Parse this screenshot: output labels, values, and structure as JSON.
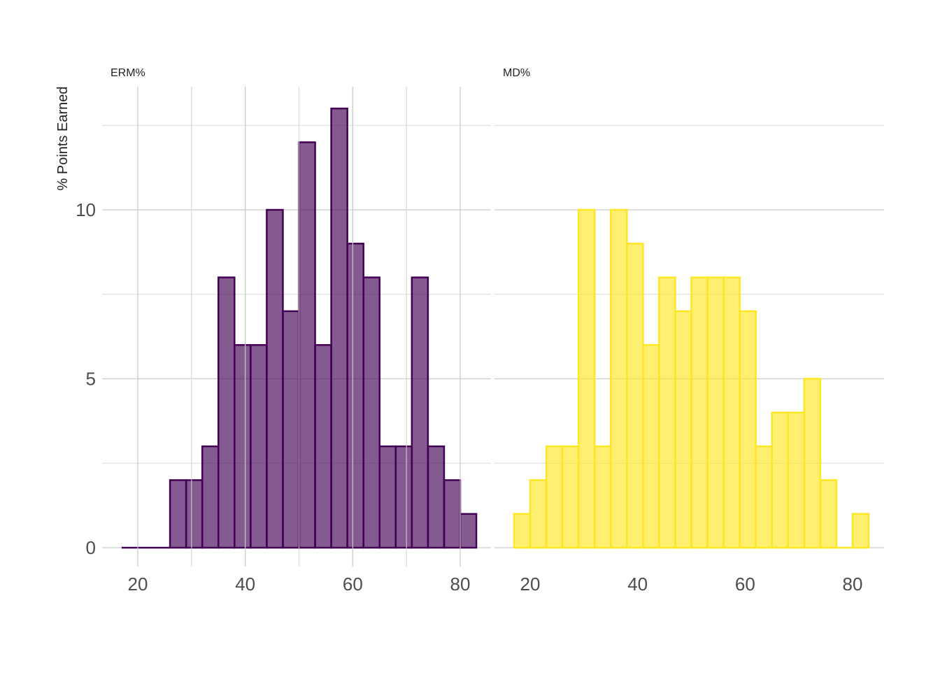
{
  "chart_data": {
    "type": "bar",
    "subtype": "faceted-histogram",
    "ylabel": "% Points Earned",
    "xlabel": "",
    "grid": true,
    "legend": "none",
    "bin_width": 3.0,
    "xlim": [
      15,
      84
    ],
    "ylim": [
      0,
      13.5
    ],
    "x_ticks": [
      20,
      40,
      60,
      80
    ],
    "y_ticks": [
      0,
      5,
      10
    ],
    "facets": [
      {
        "name": "ERM%",
        "fill": "#440154",
        "stroke": "#440154",
        "fill_opacity": 0.65,
        "bin_centers": [
          18.5,
          21.5,
          24.5,
          27.5,
          30.5,
          33.5,
          36.5,
          39.5,
          42.5,
          45.5,
          48.5,
          51.5,
          54.5,
          57.5,
          60.5,
          63.5,
          66.5,
          69.5,
          72.5,
          75.5,
          78.5,
          81.5
        ],
        "counts": [
          0,
          0,
          0,
          2,
          2,
          3,
          8,
          6,
          6,
          10,
          7,
          12,
          6,
          13,
          9,
          8,
          3,
          3,
          8,
          3,
          2,
          1
        ]
      },
      {
        "name": "MD%",
        "fill": "#FDE725",
        "stroke": "#FDE725",
        "fill_opacity": 0.65,
        "bin_centers": [
          18.5,
          21.5,
          24.5,
          27.5,
          30.5,
          33.5,
          36.5,
          39.5,
          42.5,
          45.5,
          48.5,
          51.5,
          54.5,
          57.5,
          60.5,
          63.5,
          66.5,
          69.5,
          72.5,
          75.5,
          78.5,
          81.5
        ],
        "counts": [
          1,
          2,
          3,
          3,
          10,
          3,
          10,
          9,
          6,
          8,
          7,
          8,
          8,
          8,
          7,
          3,
          4,
          4,
          5,
          2,
          0,
          1
        ]
      }
    ],
    "colors": {
      "grid": "#cccccc",
      "axis_text": "#4d4d4d",
      "title_text": "#222222"
    }
  }
}
